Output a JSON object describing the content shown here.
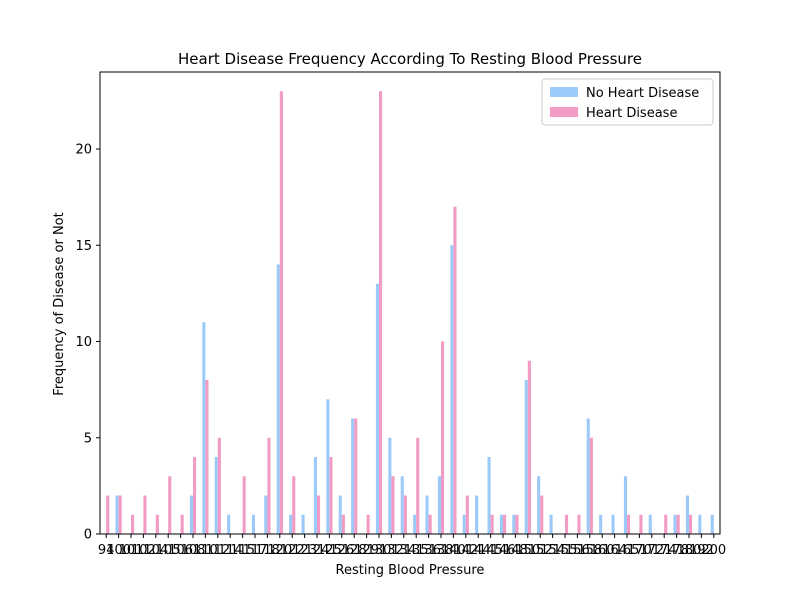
{
  "chart_data": {
    "type": "bar",
    "title": "Heart Disease Frequency According To Resting Blood Pressure",
    "xlabel": "Resting Blood Pressure",
    "ylabel": "Frequency of Disease or Not",
    "ylim": [
      0,
      24
    ],
    "yticks": [
      0,
      5,
      10,
      15,
      20
    ],
    "legend": "top-right",
    "grid": false,
    "categories": [
      "94",
      "100",
      "101",
      "102",
      "104",
      "105",
      "106",
      "108",
      "110",
      "112",
      "114",
      "115",
      "117",
      "118",
      "120",
      "122",
      "123",
      "124",
      "125",
      "126",
      "128",
      "129",
      "130",
      "132",
      "134",
      "135",
      "136",
      "138",
      "140",
      "142",
      "144",
      "145",
      "146",
      "148",
      "150",
      "152",
      "154",
      "155",
      "156",
      "158",
      "160",
      "164",
      "165",
      "170",
      "172",
      "174",
      "178",
      "180",
      "192",
      "200"
    ],
    "series": [
      {
        "name": "No Heart Disease",
        "color": "#9ccaf8",
        "values": [
          0,
          2,
          0,
          0,
          0,
          0,
          0,
          2,
          11,
          4,
          1,
          0,
          1,
          2,
          14,
          1,
          1,
          4,
          7,
          2,
          6,
          0,
          13,
          5,
          3,
          1,
          2,
          3,
          15,
          1,
          2,
          4,
          1,
          1,
          8,
          3,
          1,
          0,
          0,
          6,
          1,
          1,
          3,
          0,
          1,
          0,
          1,
          2,
          1,
          1
        ]
      },
      {
        "name": "Heart Disease",
        "color": "#f29bc4",
        "values": [
          2,
          2,
          1,
          2,
          1,
          3,
          1,
          4,
          8,
          5,
          0,
          3,
          0,
          5,
          23,
          3,
          0,
          2,
          4,
          1,
          6,
          1,
          23,
          3,
          2,
          5,
          1,
          10,
          17,
          2,
          0,
          1,
          1,
          1,
          9,
          2,
          0,
          1,
          1,
          5,
          0,
          0,
          1,
          1,
          0,
          1,
          1,
          1,
          0,
          0
        ]
      }
    ]
  }
}
